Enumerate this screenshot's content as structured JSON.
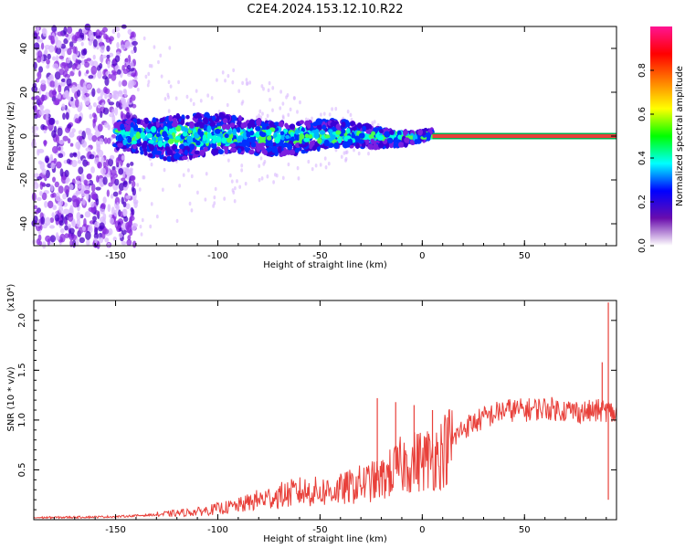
{
  "title": "C2E4.2024.153.12.10.R22",
  "colors": {
    "snr_line": "#e8403a",
    "carrier": "#e8403a",
    "scatter_weak": "#d9b8ff",
    "scatter_mid": "#8a2be2",
    "scatter_strong": "#4b00c8",
    "background": "#ffffff"
  },
  "chart_data": [
    {
      "type": "heatmap",
      "xlabel": "Height of straight line (km)",
      "ylabel": "Frequency (Hz)",
      "xlim": [
        -190,
        95
      ],
      "ylim": [
        -50,
        50
      ],
      "xticks": [
        -150,
        -100,
        -50,
        0,
        50
      ],
      "xtick_labels": [
        "-150",
        "-100",
        "-50",
        "0",
        "50"
      ],
      "yticks": [
        -40,
        -20,
        0,
        20,
        40
      ],
      "ytick_labels": [
        "-40",
        "-20",
        "0",
        "20",
        "40"
      ],
      "colorbar": {
        "label": "Normalized spectral amplitude",
        "range": [
          0.0,
          1.0
        ],
        "ticks": [
          0.0,
          0.2,
          0.4,
          0.6,
          0.8
        ],
        "tick_labels": [
          "0.0",
          "0.2",
          "0.4",
          "0.6",
          "0.8"
        ],
        "colormap": [
          "#ffffff",
          "#6a0dad",
          "#0000ff",
          "#00ffff",
          "#00ff00",
          "#ffff00",
          "#ff7f00",
          "#ff0000",
          "#ff1493"
        ]
      },
      "features": {
        "carrier_frequency_hz": 0,
        "carrier_start_km": 5,
        "carrier_end_km": 95,
        "broadband_noise_below_km": -150,
        "band_halfwidth_hz": [
          {
            "x": -150,
            "hw": 6
          },
          {
            "x": -120,
            "hw": 10
          },
          {
            "x": -90,
            "hw": 8
          },
          {
            "x": -60,
            "hw": 7
          },
          {
            "x": -30,
            "hw": 5
          },
          {
            "x": -10,
            "hw": 3
          },
          {
            "x": 0,
            "hw": 2
          }
        ]
      }
    },
    {
      "type": "line",
      "xlabel": "Height of straight line (km)",
      "ylabel": "SNR (10 * v/v)",
      "y_multiplier": "(x10⁴)",
      "xlim": [
        -190,
        95
      ],
      "ylim": [
        0,
        2.2
      ],
      "xticks": [
        -150,
        -100,
        -50,
        0,
        50
      ],
      "xtick_labels": [
        "-150",
        "-100",
        "-50",
        "0",
        "50"
      ],
      "yticks": [
        0.5,
        1.0,
        1.5,
        2.0
      ],
      "ytick_labels": [
        "0.5",
        "1.0",
        "1.5",
        "2.0"
      ],
      "series": [
        {
          "trend": [
            {
              "x": -190,
              "y": 0.02
            },
            {
              "x": -150,
              "y": 0.03
            },
            {
              "x": -130,
              "y": 0.05
            },
            {
              "x": -110,
              "y": 0.08
            },
            {
              "x": -90,
              "y": 0.14
            },
            {
              "x": -80,
              "y": 0.2
            },
            {
              "x": -70,
              "y": 0.24
            },
            {
              "x": -60,
              "y": 0.28
            },
            {
              "x": -50,
              "y": 0.28
            },
            {
              "x": -40,
              "y": 0.3
            },
            {
              "x": -30,
              "y": 0.36
            },
            {
              "x": -20,
              "y": 0.4
            },
            {
              "x": -10,
              "y": 0.55
            },
            {
              "x": 0,
              "y": 0.6
            },
            {
              "x": 5,
              "y": 0.62
            },
            {
              "x": 10,
              "y": 0.68
            },
            {
              "x": 20,
              "y": 0.92
            },
            {
              "x": 30,
              "y": 1.02
            },
            {
              "x": 40,
              "y": 1.1
            },
            {
              "x": 50,
              "y": 1.1
            },
            {
              "x": 60,
              "y": 1.12
            },
            {
              "x": 70,
              "y": 1.1
            },
            {
              "x": 80,
              "y": 1.08
            },
            {
              "x": 90,
              "y": 1.1
            },
            {
              "x": 95,
              "y": 1.05
            }
          ],
          "spikes": [
            {
              "x": -22,
              "y": 1.22
            },
            {
              "x": -13,
              "y": 1.18
            },
            {
              "x": -4,
              "y": 1.15
            },
            {
              "x": 5,
              "y": 1.1
            },
            {
              "x": 88,
              "y": 1.58
            },
            {
              "x": 91,
              "y": 2.18
            },
            {
              "x": 91,
              "y": 0.2
            }
          ]
        }
      ]
    }
  ]
}
